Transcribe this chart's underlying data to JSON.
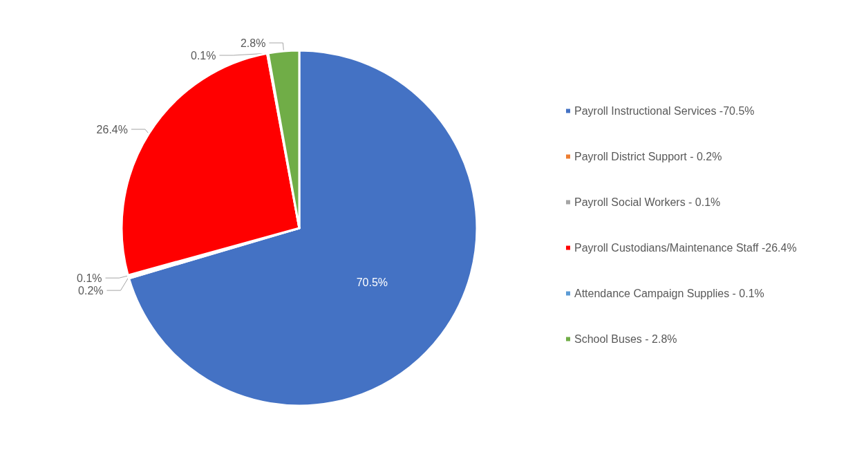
{
  "chart_data": {
    "type": "pie",
    "categories": [
      "Payroll Instructional Services -70.5%",
      "Payroll District Support - 0.2%",
      "Payroll Social Workers - 0.1%",
      "Payroll Custodians/Maintenance Staff -26.4%",
      "Attendance Campaign Supplies - 0.1%",
      "School Buses - 2.8%"
    ],
    "values": [
      70.5,
      0.2,
      0.1,
      26.4,
      0.1,
      2.8
    ],
    "colors": [
      "#4472c4",
      "#ed7d31",
      "#a5a5a5",
      "#ff0000",
      "#5b9bd5",
      "#70ad47"
    ],
    "value_labels": [
      "70.5%",
      "0.2%",
      "0.1%",
      "26.4%",
      "0.1%",
      "2.8%"
    ],
    "legend": "right"
  }
}
